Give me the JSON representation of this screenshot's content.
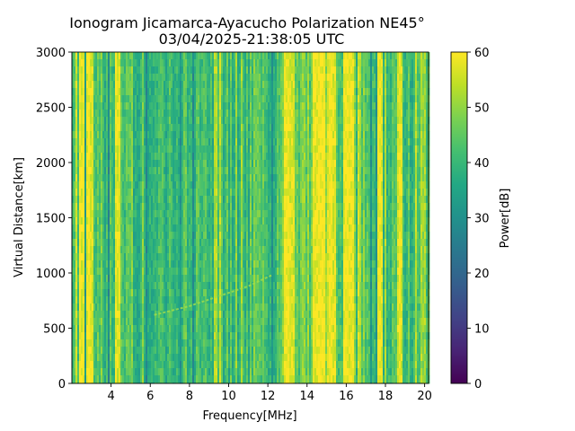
{
  "chart_data": {
    "type": "heatmap",
    "title": "Ionogram Jicamarca-Ayacucho Polarization NE45°",
    "subtitle": "03/04/2025-21:38:05 UTC",
    "xlabel": "Frequency[MHz]",
    "ylabel": "Virtual Distance[km]",
    "xlim": [
      2.0,
      20.2
    ],
    "ylim": [
      0,
      3000
    ],
    "xticks": [
      4,
      6,
      8,
      10,
      12,
      14,
      16,
      18,
      20
    ],
    "yticks": [
      0,
      500,
      1000,
      1500,
      2000,
      2500,
      3000
    ],
    "colorbar": {
      "label": "Power[dB]",
      "range": [
        0,
        60
      ],
      "ticks": [
        0,
        10,
        20,
        30,
        40,
        50,
        60
      ],
      "colormap": "viridis"
    },
    "bright_bands_mhz": [
      {
        "x0": 2.4,
        "x1": 2.6
      },
      {
        "x0": 2.7,
        "x1": 3.1
      },
      {
        "x0": 4.2,
        "x1": 4.5
      },
      {
        "x0": 12.8,
        "x1": 13.4
      },
      {
        "x0": 14.3,
        "x1": 14.9
      },
      {
        "x0": 15.0,
        "x1": 15.5
      },
      {
        "x0": 15.8,
        "x1": 16.4
      },
      {
        "x0": 17.6,
        "x1": 17.9
      },
      {
        "x0": 18.6,
        "x1": 18.9
      }
    ],
    "trace": {
      "points": [
        {
          "x": 6.2,
          "y": 620
        },
        {
          "x": 8.0,
          "y": 700
        },
        {
          "x": 10.0,
          "y": 820
        },
        {
          "x": 11.0,
          "y": 880
        },
        {
          "x": 12.2,
          "y": 980
        }
      ]
    }
  }
}
